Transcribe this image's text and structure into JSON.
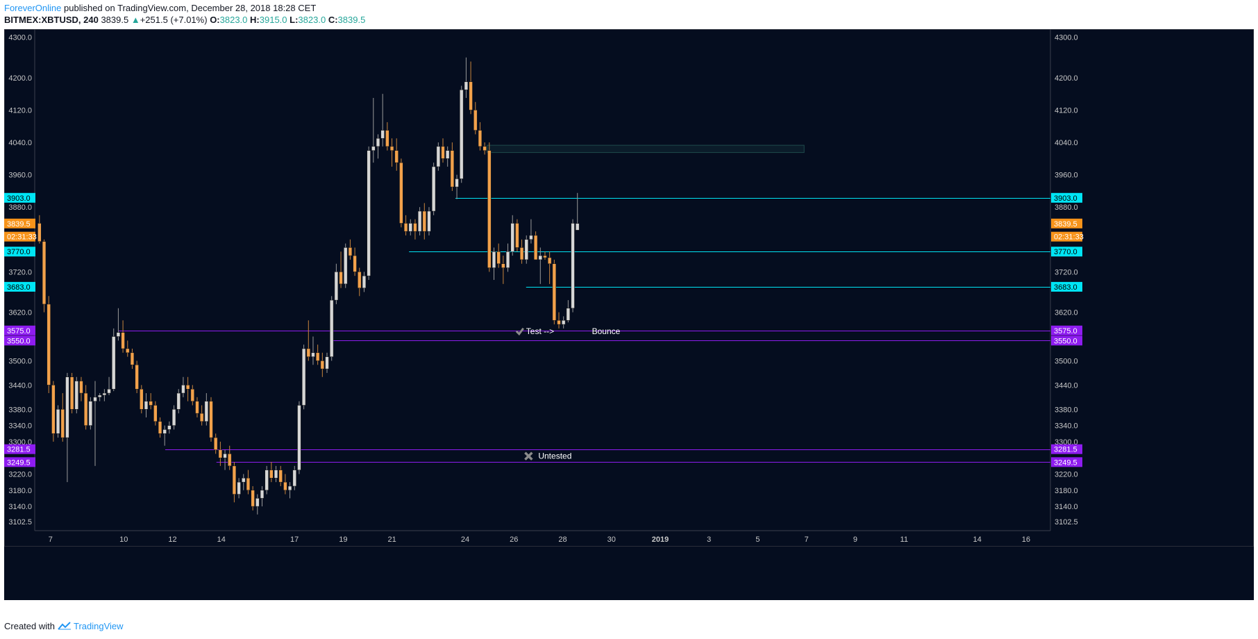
{
  "header": {
    "author": "ForeverOnline",
    "published": "published on TradingView.com, December 28, 2018 18:28 CET",
    "symbol": "BITMEX:XBTUSD, 240",
    "last": "3839.5",
    "change": "+251.5 (+7.01%)",
    "o_label": "O:",
    "o": "3823.0",
    "h_label": "H:",
    "h": "3915.0",
    "l_label": "L:",
    "l": "3823.0",
    "c_label": "C:",
    "c": "3839.5"
  },
  "footer": {
    "created": "Created with",
    "brand": "TradingView"
  },
  "colors": {
    "background": "#050d1f",
    "bull_body": "#d6d6d6",
    "bear_body": "#f2a14b",
    "cyan": "#00e5f5",
    "purple": "#8e1cf0",
    "orange": "#f7931a",
    "axis_text": "#c8c8c8",
    "zone": "#1e4a4c"
  },
  "chart_data": {
    "type": "candlestick",
    "ylim": [
      3080,
      4320
    ],
    "y_ticks": [
      "4300.0",
      "4200.0",
      "4120.0",
      "4040.0",
      "3960.0",
      "3880.0",
      "3720.0",
      "3620.0",
      "3500.0",
      "3440.0",
      "3380.0",
      "3340.0",
      "3300.0",
      "3220.0",
      "3180.0",
      "3140.0",
      "3102.5"
    ],
    "x_ticks": [
      {
        "label": "7",
        "day": 7
      },
      {
        "label": "10",
        "day": 10
      },
      {
        "label": "12",
        "day": 12
      },
      {
        "label": "14",
        "day": 14
      },
      {
        "label": "17",
        "day": 17
      },
      {
        "label": "19",
        "day": 19
      },
      {
        "label": "21",
        "day": 21
      },
      {
        "label": "24",
        "day": 24
      },
      {
        "label": "26",
        "day": 26
      },
      {
        "label": "28",
        "day": 28
      },
      {
        "label": "30",
        "day": 30
      },
      {
        "label": "2019",
        "day": 32,
        "bold": true
      },
      {
        "label": "3",
        "day": 34
      },
      {
        "label": "5",
        "day": 36
      },
      {
        "label": "7",
        "day": 38
      },
      {
        "label": "9",
        "day": 40
      },
      {
        "label": "11",
        "day": 42
      },
      {
        "label": "14",
        "day": 45
      },
      {
        "label": "16",
        "day": 47
      }
    ],
    "x_domain": [
      6.35,
      48.0
    ],
    "price_labels": [
      {
        "text": "3903.0",
        "value": 3903.0,
        "color": "cyan"
      },
      {
        "text": "3839.5",
        "value": 3839.5,
        "color": "orange"
      },
      {
        "text": "02:31:33",
        "value": 3807.0,
        "color": "orange"
      },
      {
        "text": "3770.0",
        "value": 3770.0,
        "color": "cyan"
      },
      {
        "text": "3683.0",
        "value": 3683.0,
        "color": "cyan"
      },
      {
        "text": "3575.0",
        "value": 3575.0,
        "color": "purple"
      },
      {
        "text": "3550.0",
        "value": 3550.0,
        "color": "purple"
      },
      {
        "text": "3281.5",
        "value": 3281.5,
        "color": "purple"
      },
      {
        "text": "3249.5",
        "value": 3249.5,
        "color": "purple"
      }
    ],
    "levels": [
      {
        "value": 3903.0,
        "start_day": 23.6,
        "color": "cyan"
      },
      {
        "value": 3770.0,
        "start_day": 21.7,
        "color": "cyan"
      },
      {
        "value": 3683.0,
        "start_day": 26.5,
        "color": "cyan"
      },
      {
        "value": 3575.0,
        "start_day": 9.8,
        "color": "purple"
      },
      {
        "value": 3550.0,
        "start_day": 18.5,
        "color": "purple"
      },
      {
        "value": 3281.5,
        "start_day": 11.7,
        "color": "purple"
      },
      {
        "value": 3249.5,
        "start_day": 13.8,
        "color": "purple"
      }
    ],
    "zone": {
      "start_day": 24.9,
      "end_day": 37.9,
      "low": 4015,
      "high": 4033
    },
    "annotations": [
      {
        "text": "Test -->",
        "day": 26.5,
        "value": 3575,
        "icon": "check"
      },
      {
        "text": "Bounce",
        "day": 29.2,
        "value": 3575,
        "icon": ""
      },
      {
        "text": "Untested",
        "day": 27.0,
        "value": 3266,
        "icon": "cross"
      }
    ],
    "candles": [
      {
        "o": 3840,
        "h": 3860,
        "l": 3790,
        "c": 3795
      },
      {
        "o": 3795,
        "h": 3800,
        "l": 3620,
        "c": 3640
      },
      {
        "o": 3640,
        "h": 3660,
        "l": 3420,
        "c": 3440
      },
      {
        "o": 3440,
        "h": 3450,
        "l": 3300,
        "c": 3320
      },
      {
        "o": 3320,
        "h": 3390,
        "l": 3310,
        "c": 3380
      },
      {
        "o": 3380,
        "h": 3420,
        "l": 3300,
        "c": 3310
      },
      {
        "o": 3310,
        "h": 3470,
        "l": 3200,
        "c": 3460
      },
      {
        "o": 3460,
        "h": 3470,
        "l": 3370,
        "c": 3380
      },
      {
        "o": 3380,
        "h": 3460,
        "l": 3370,
        "c": 3450
      },
      {
        "o": 3450,
        "h": 3460,
        "l": 3400,
        "c": 3420
      },
      {
        "o": 3420,
        "h": 3440,
        "l": 3330,
        "c": 3340
      },
      {
        "o": 3340,
        "h": 3410,
        "l": 3330,
        "c": 3400
      },
      {
        "o": 3400,
        "h": 3450,
        "l": 3240,
        "c": 3410
      },
      {
        "o": 3410,
        "h": 3420,
        "l": 3400,
        "c": 3415
      },
      {
        "o": 3415,
        "h": 3430,
        "l": 3400,
        "c": 3420
      },
      {
        "o": 3420,
        "h": 3460,
        "l": 3415,
        "c": 3430
      },
      {
        "o": 3430,
        "h": 3580,
        "l": 3425,
        "c": 3560
      },
      {
        "o": 3560,
        "h": 3630,
        "l": 3550,
        "c": 3570
      },
      {
        "o": 3570,
        "h": 3600,
        "l": 3520,
        "c": 3530
      },
      {
        "o": 3530,
        "h": 3550,
        "l": 3510,
        "c": 3520
      },
      {
        "o": 3520,
        "h": 3530,
        "l": 3480,
        "c": 3490
      },
      {
        "o": 3490,
        "h": 3500,
        "l": 3420,
        "c": 3430
      },
      {
        "o": 3430,
        "h": 3440,
        "l": 3370,
        "c": 3380
      },
      {
        "o": 3380,
        "h": 3420,
        "l": 3360,
        "c": 3400
      },
      {
        "o": 3400,
        "h": 3420,
        "l": 3380,
        "c": 3390
      },
      {
        "o": 3390,
        "h": 3400,
        "l": 3340,
        "c": 3350
      },
      {
        "o": 3350,
        "h": 3360,
        "l": 3310,
        "c": 3320
      },
      {
        "o": 3320,
        "h": 3340,
        "l": 3290,
        "c": 3330
      },
      {
        "o": 3330,
        "h": 3350,
        "l": 3320,
        "c": 3340
      },
      {
        "o": 3340,
        "h": 3390,
        "l": 3330,
        "c": 3380
      },
      {
        "o": 3380,
        "h": 3430,
        "l": 3370,
        "c": 3420
      },
      {
        "o": 3420,
        "h": 3460,
        "l": 3410,
        "c": 3440
      },
      {
        "o": 3440,
        "h": 3460,
        "l": 3400,
        "c": 3430
      },
      {
        "o": 3430,
        "h": 3440,
        "l": 3390,
        "c": 3400
      },
      {
        "o": 3400,
        "h": 3410,
        "l": 3360,
        "c": 3370
      },
      {
        "o": 3370,
        "h": 3390,
        "l": 3340,
        "c": 3350
      },
      {
        "o": 3350,
        "h": 3420,
        "l": 3340,
        "c": 3400
      },
      {
        "o": 3400,
        "h": 3410,
        "l": 3300,
        "c": 3310
      },
      {
        "o": 3310,
        "h": 3320,
        "l": 3270,
        "c": 3280
      },
      {
        "o": 3280,
        "h": 3300,
        "l": 3240,
        "c": 3260
      },
      {
        "o": 3260,
        "h": 3280,
        "l": 3230,
        "c": 3270
      },
      {
        "o": 3270,
        "h": 3290,
        "l": 3230,
        "c": 3240
      },
      {
        "o": 3240,
        "h": 3250,
        "l": 3150,
        "c": 3170
      },
      {
        "o": 3170,
        "h": 3210,
        "l": 3160,
        "c": 3200
      },
      {
        "o": 3200,
        "h": 3220,
        "l": 3180,
        "c": 3210
      },
      {
        "o": 3210,
        "h": 3230,
        "l": 3170,
        "c": 3180
      },
      {
        "o": 3180,
        "h": 3190,
        "l": 3130,
        "c": 3140
      },
      {
        "o": 3140,
        "h": 3170,
        "l": 3120,
        "c": 3160
      },
      {
        "o": 3160,
        "h": 3190,
        "l": 3140,
        "c": 3180
      },
      {
        "o": 3180,
        "h": 3240,
        "l": 3170,
        "c": 3230
      },
      {
        "o": 3230,
        "h": 3250,
        "l": 3200,
        "c": 3210
      },
      {
        "o": 3210,
        "h": 3240,
        "l": 3200,
        "c": 3230
      },
      {
        "o": 3230,
        "h": 3240,
        "l": 3190,
        "c": 3200
      },
      {
        "o": 3200,
        "h": 3220,
        "l": 3170,
        "c": 3180
      },
      {
        "o": 3180,
        "h": 3200,
        "l": 3160,
        "c": 3190
      },
      {
        "o": 3190,
        "h": 3240,
        "l": 3180,
        "c": 3230
      },
      {
        "o": 3230,
        "h": 3400,
        "l": 3220,
        "c": 3390
      },
      {
        "o": 3390,
        "h": 3540,
        "l": 3380,
        "c": 3530
      },
      {
        "o": 3530,
        "h": 3600,
        "l": 3500,
        "c": 3510
      },
      {
        "o": 3510,
        "h": 3560,
        "l": 3490,
        "c": 3520
      },
      {
        "o": 3520,
        "h": 3540,
        "l": 3490,
        "c": 3500
      },
      {
        "o": 3500,
        "h": 3520,
        "l": 3460,
        "c": 3480
      },
      {
        "o": 3480,
        "h": 3520,
        "l": 3470,
        "c": 3510
      },
      {
        "o": 3510,
        "h": 3660,
        "l": 3500,
        "c": 3650
      },
      {
        "o": 3650,
        "h": 3740,
        "l": 3640,
        "c": 3720
      },
      {
        "o": 3720,
        "h": 3770,
        "l": 3680,
        "c": 3690
      },
      {
        "o": 3690,
        "h": 3790,
        "l": 3680,
        "c": 3780
      },
      {
        "o": 3780,
        "h": 3800,
        "l": 3750,
        "c": 3760
      },
      {
        "o": 3760,
        "h": 3780,
        "l": 3710,
        "c": 3720
      },
      {
        "o": 3720,
        "h": 3730,
        "l": 3660,
        "c": 3680
      },
      {
        "o": 3680,
        "h": 3720,
        "l": 3670,
        "c": 3710
      },
      {
        "o": 3710,
        "h": 4030,
        "l": 3700,
        "c": 4020
      },
      {
        "o": 4020,
        "h": 4150,
        "l": 3990,
        "c": 4030
      },
      {
        "o": 4030,
        "h": 4060,
        "l": 4000,
        "c": 4050
      },
      {
        "o": 4050,
        "h": 4160,
        "l": 4030,
        "c": 4070
      },
      {
        "o": 4070,
        "h": 4090,
        "l": 4020,
        "c": 4030
      },
      {
        "o": 4030,
        "h": 4050,
        "l": 3980,
        "c": 4020
      },
      {
        "o": 4020,
        "h": 4050,
        "l": 3970,
        "c": 3990
      },
      {
        "o": 3990,
        "h": 4000,
        "l": 3830,
        "c": 3840
      },
      {
        "o": 3840,
        "h": 3860,
        "l": 3810,
        "c": 3820
      },
      {
        "o": 3820,
        "h": 3850,
        "l": 3810,
        "c": 3840
      },
      {
        "o": 3840,
        "h": 3850,
        "l": 3800,
        "c": 3820
      },
      {
        "o": 3820,
        "h": 3880,
        "l": 3810,
        "c": 3870
      },
      {
        "o": 3870,
        "h": 3890,
        "l": 3800,
        "c": 3820
      },
      {
        "o": 3820,
        "h": 3880,
        "l": 3810,
        "c": 3870
      },
      {
        "o": 3870,
        "h": 3990,
        "l": 3860,
        "c": 3980
      },
      {
        "o": 3980,
        "h": 4040,
        "l": 3970,
        "c": 4030
      },
      {
        "o": 4030,
        "h": 4050,
        "l": 3990,
        "c": 4000
      },
      {
        "o": 4000,
        "h": 4030,
        "l": 3980,
        "c": 4020
      },
      {
        "o": 4020,
        "h": 4040,
        "l": 3920,
        "c": 3930
      },
      {
        "o": 3930,
        "h": 3960,
        "l": 3900,
        "c": 3950
      },
      {
        "o": 3950,
        "h": 4180,
        "l": 3940,
        "c": 4170
      },
      {
        "o": 4170,
        "h": 4250,
        "l": 4150,
        "c": 4190
      },
      {
        "o": 4190,
        "h": 4240,
        "l": 4110,
        "c": 4120
      },
      {
        "o": 4120,
        "h": 4140,
        "l": 4060,
        "c": 4070
      },
      {
        "o": 4070,
        "h": 4090,
        "l": 4020,
        "c": 4030
      },
      {
        "o": 4030,
        "h": 4040,
        "l": 4010,
        "c": 4020
      },
      {
        "o": 4020,
        "h": 4040,
        "l": 3720,
        "c": 3730
      },
      {
        "o": 3730,
        "h": 3780,
        "l": 3700,
        "c": 3770
      },
      {
        "o": 3770,
        "h": 3790,
        "l": 3730,
        "c": 3740
      },
      {
        "o": 3740,
        "h": 3760,
        "l": 3690,
        "c": 3730
      },
      {
        "o": 3730,
        "h": 3790,
        "l": 3720,
        "c": 3770
      },
      {
        "o": 3770,
        "h": 3860,
        "l": 3760,
        "c": 3840
      },
      {
        "o": 3840,
        "h": 3850,
        "l": 3770,
        "c": 3780
      },
      {
        "o": 3780,
        "h": 3800,
        "l": 3740,
        "c": 3750
      },
      {
        "o": 3750,
        "h": 3810,
        "l": 3740,
        "c": 3800
      },
      {
        "o": 3800,
        "h": 3850,
        "l": 3790,
        "c": 3810
      },
      {
        "o": 3810,
        "h": 3820,
        "l": 3750,
        "c": 3750
      },
      {
        "o": 3750,
        "h": 3780,
        "l": 3690,
        "c": 3760
      },
      {
        "o": 3760,
        "h": 3770,
        "l": 3750,
        "c": 3755
      },
      {
        "o": 3755,
        "h": 3770,
        "l": 3690,
        "c": 3740
      },
      {
        "o": 3740,
        "h": 3750,
        "l": 3590,
        "c": 3600
      },
      {
        "o": 3600,
        "h": 3620,
        "l": 3580,
        "c": 3590
      },
      {
        "o": 3590,
        "h": 3610,
        "l": 3580,
        "c": 3600
      },
      {
        "o": 3600,
        "h": 3650,
        "l": 3595,
        "c": 3630
      },
      {
        "o": 3630,
        "h": 3850,
        "l": 3620,
        "c": 3840
      },
      {
        "o": 3823,
        "h": 3915,
        "l": 3823,
        "c": 3839.5
      }
    ]
  }
}
